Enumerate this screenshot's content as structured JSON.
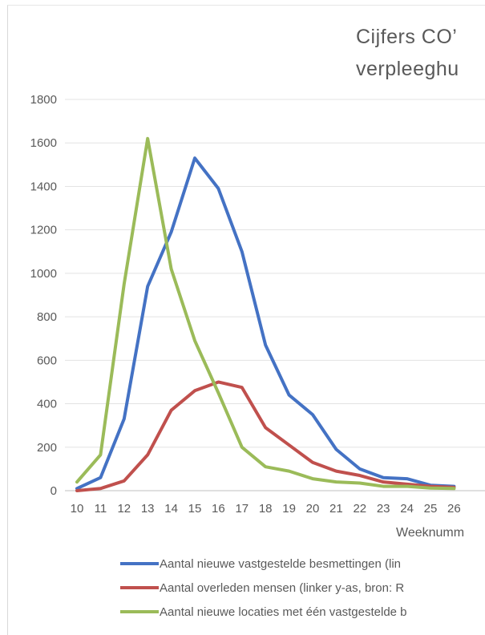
{
  "chart_data": {
    "type": "line",
    "title_lines": [
      "Cijfers  CO’",
      "verpleeghu"
    ],
    "xlabel": "Weeknumm",
    "x": [
      10,
      11,
      12,
      13,
      14,
      15,
      16,
      17,
      18,
      19,
      20,
      21,
      22,
      23,
      24,
      25,
      26
    ],
    "ylim": [
      0,
      1800
    ],
    "yticks": [
      0,
      200,
      400,
      600,
      800,
      1000,
      1200,
      1400,
      1600,
      1800
    ],
    "grid": true,
    "legend_position": "bottom",
    "series": [
      {
        "name": "Aantal nieuwe vastgestelde besmettingen  (lin",
        "color": "#4472c4",
        "values": [
          10,
          60,
          330,
          940,
          1190,
          1530,
          1390,
          1100,
          670,
          440,
          350,
          190,
          100,
          60,
          55,
          25,
          20
        ]
      },
      {
        "name": "Aantal overleden mensen  (linker y-as, bron: R",
        "color": "#c0504d",
        "values": [
          0,
          10,
          45,
          165,
          370,
          460,
          500,
          475,
          290,
          210,
          130,
          90,
          70,
          40,
          30,
          20,
          15
        ]
      },
      {
        "name": "Aantal nieuwe locaties met één vastgestelde b",
        "color": "#9bbb59",
        "values": [
          40,
          165,
          950,
          1620,
          1020,
          690,
          450,
          200,
          110,
          90,
          55,
          40,
          35,
          20,
          20,
          12,
          10
        ]
      }
    ]
  }
}
